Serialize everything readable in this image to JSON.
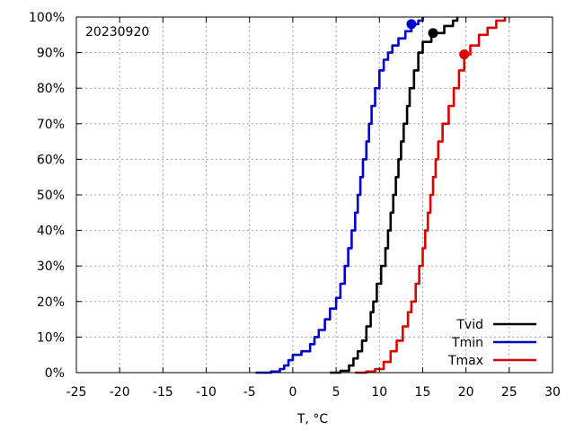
{
  "chart_data": {
    "type": "line",
    "annotation": "20230920",
    "xlabel": "T, °C",
    "ylabel": "",
    "xlim": [
      -25,
      30
    ],
    "ylim": [
      0,
      100
    ],
    "x_ticks": [
      -25,
      -20,
      -15,
      -10,
      -5,
      0,
      5,
      10,
      15,
      20,
      25,
      30
    ],
    "x_tick_labels": [
      "-25",
      "-20",
      "-15",
      "-10",
      "-5",
      "0",
      "5",
      "10",
      "15",
      "20",
      "25",
      "30"
    ],
    "y_ticks": [
      0,
      10,
      20,
      30,
      40,
      50,
      60,
      70,
      80,
      90,
      100
    ],
    "y_tick_labels": [
      "0%",
      "10%",
      "20%",
      "30%",
      "40%",
      "50%",
      "60%",
      "70%",
      "80%",
      "90%",
      "100%"
    ],
    "grid": true,
    "legend_position": "bottom-right",
    "series": [
      {
        "name": "Tvid",
        "color": "#000000",
        "marker": {
          "x": 16.2,
          "y": 95.5
        },
        "points": [
          [
            4.3,
            0
          ],
          [
            5.5,
            0.5
          ],
          [
            6.5,
            2
          ],
          [
            7,
            4
          ],
          [
            7.5,
            6
          ],
          [
            8,
            9
          ],
          [
            8.5,
            13
          ],
          [
            9,
            17
          ],
          [
            9.3,
            20
          ],
          [
            9.7,
            25
          ],
          [
            10.2,
            30
          ],
          [
            10.7,
            35
          ],
          [
            11,
            40
          ],
          [
            11.3,
            45
          ],
          [
            11.6,
            50
          ],
          [
            11.9,
            55
          ],
          [
            12.2,
            60
          ],
          [
            12.5,
            65
          ],
          [
            12.8,
            70
          ],
          [
            13.2,
            75
          ],
          [
            13.5,
            80
          ],
          [
            14,
            85
          ],
          [
            14.5,
            90
          ],
          [
            15,
            93
          ],
          [
            16,
            95.5
          ],
          [
            17.5,
            97.5
          ],
          [
            18.5,
            99
          ],
          [
            19,
            100
          ]
        ]
      },
      {
        "name": "Tmin",
        "color": "#0000cc",
        "marker": {
          "x": 13.7,
          "y": 98
        },
        "points": [
          [
            -4.3,
            0
          ],
          [
            -2.5,
            0.3
          ],
          [
            -1.5,
            1
          ],
          [
            -1,
            2
          ],
          [
            -0.5,
            3.5
          ],
          [
            0,
            5
          ],
          [
            1,
            6
          ],
          [
            2,
            8
          ],
          [
            2.5,
            10
          ],
          [
            3,
            12
          ],
          [
            3.7,
            15
          ],
          [
            4.3,
            18
          ],
          [
            5,
            21
          ],
          [
            5.5,
            25
          ],
          [
            6,
            30
          ],
          [
            6.4,
            35
          ],
          [
            6.8,
            40
          ],
          [
            7.2,
            45
          ],
          [
            7.5,
            50
          ],
          [
            7.8,
            55
          ],
          [
            8.1,
            60
          ],
          [
            8.5,
            65
          ],
          [
            8.8,
            70
          ],
          [
            9.1,
            75
          ],
          [
            9.5,
            80
          ],
          [
            10,
            85
          ],
          [
            10.5,
            88
          ],
          [
            11,
            90
          ],
          [
            11.5,
            92
          ],
          [
            12.2,
            94
          ],
          [
            13,
            96
          ],
          [
            13.7,
            98
          ],
          [
            14.5,
            99
          ],
          [
            15,
            100
          ]
        ]
      },
      {
        "name": "Tmax",
        "color": "#dd0000",
        "marker": {
          "x": 19.8,
          "y": 89.5
        },
        "points": [
          [
            7.2,
            0
          ],
          [
            8.5,
            0.3
          ],
          [
            9.5,
            1
          ],
          [
            10.5,
            3
          ],
          [
            11.3,
            6
          ],
          [
            12,
            9
          ],
          [
            12.7,
            13
          ],
          [
            13.3,
            17
          ],
          [
            13.7,
            20
          ],
          [
            14.2,
            25
          ],
          [
            14.6,
            30
          ],
          [
            15,
            35
          ],
          [
            15.3,
            40
          ],
          [
            15.6,
            45
          ],
          [
            15.9,
            50
          ],
          [
            16.2,
            55
          ],
          [
            16.5,
            60
          ],
          [
            16.8,
            65
          ],
          [
            17.3,
            70
          ],
          [
            18,
            75
          ],
          [
            18.6,
            80
          ],
          [
            19.2,
            85
          ],
          [
            19.8,
            89.5
          ],
          [
            20.5,
            92
          ],
          [
            21.5,
            95
          ],
          [
            22.5,
            97
          ],
          [
            23.5,
            99
          ],
          [
            24.5,
            100
          ]
        ]
      }
    ]
  }
}
